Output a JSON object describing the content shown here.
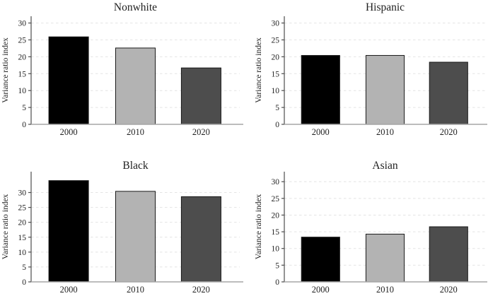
{
  "figure": {
    "ylabel": "Variance ratio index",
    "categories": [
      "2000",
      "2010",
      "2020"
    ],
    "bar_colors": [
      "#000000",
      "#b3b3b3",
      "#4d4d4d"
    ],
    "colors": {
      "bar_outline": "#1a1a1a",
      "grid": "#e4e4e4",
      "y_axis": "#4d4d4d",
      "baseline": "#a6a6a6",
      "text": "#1f1f1f"
    }
  },
  "chart_data": [
    {
      "type": "bar",
      "title": "Nonwhite",
      "categories": [
        "2000",
        "2010",
        "2020"
      ],
      "values": [
        25.9,
        22.6,
        16.7
      ],
      "ylabel": "Variance ratio index",
      "ylim": [
        0,
        32
      ],
      "yticks": [
        0,
        5,
        10,
        15,
        20,
        25,
        30
      ],
      "grid": true,
      "legend": "none"
    },
    {
      "type": "bar",
      "title": "Hispanic",
      "categories": [
        "2000",
        "2010",
        "2020"
      ],
      "values": [
        20.4,
        20.4,
        18.4
      ],
      "ylabel": "Variance ratio index",
      "ylim": [
        0,
        32
      ],
      "yticks": [
        0,
        5,
        10,
        15,
        20,
        25,
        30
      ],
      "grid": true,
      "legend": "none"
    },
    {
      "type": "bar",
      "title": "Black",
      "categories": [
        "2000",
        "2010",
        "2020"
      ],
      "values": [
        34.0,
        30.4,
        28.6
      ],
      "ylabel": "Variance ratio index",
      "ylim": [
        0,
        37
      ],
      "yticks": [
        0,
        5,
        10,
        15,
        20,
        25,
        30
      ],
      "grid": true,
      "legend": "none"
    },
    {
      "type": "bar",
      "title": "Asian",
      "categories": [
        "2000",
        "2010",
        "2020"
      ],
      "values": [
        13.4,
        14.3,
        16.5
      ],
      "ylabel": "Variance ratio index",
      "ylim": [
        0,
        33
      ],
      "yticks": [
        0,
        5,
        10,
        15,
        20,
        25,
        30
      ],
      "grid": true,
      "legend": "none"
    }
  ]
}
